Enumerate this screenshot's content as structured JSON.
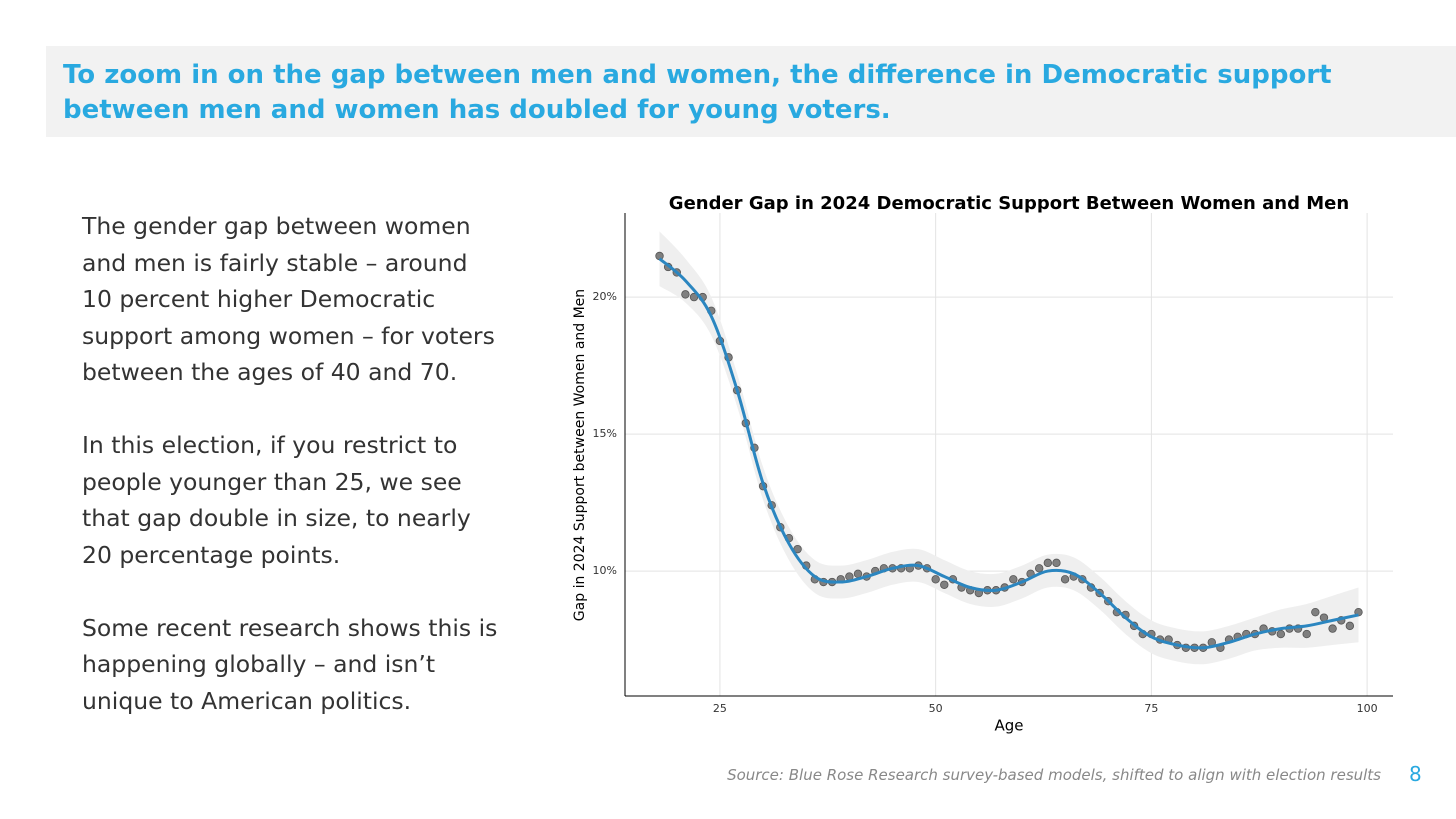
{
  "header": {
    "title": "To zoom in on the gap between men and women, the difference in Democratic support between men and women has doubled for young voters."
  },
  "body": {
    "paragraphs": [
      "The gender gap between women and men is fairly stable – around 10 percent higher Democratic support among women – for voters between the ages of 40 and 70.",
      "In this election, if you restrict to people younger than 25, we see that gap double in size, to nearly 20 percentage points.",
      "Some recent research shows this is happening globally – and isn’t unique to American politics."
    ]
  },
  "chart_data": {
    "type": "scatter",
    "title": "Gender Gap in 2024 Democratic Support Between Women and Men",
    "x_label": "Age",
    "y_label": "Gap in 2024 Support between Women and Men",
    "xlim": [
      14,
      103
    ],
    "ylim": [
      5.44,
      23.07
    ],
    "xticks": [
      25,
      50,
      75,
      100
    ],
    "yticks": [
      {
        "value": 10,
        "label": "10%"
      },
      {
        "value": 15,
        "label": "15%"
      },
      {
        "value": 20,
        "label": "20%"
      }
    ],
    "grid": true,
    "points": {
      "color": "#7f7f7f",
      "x": [
        18,
        19,
        20,
        21,
        22,
        23,
        24,
        25,
        26,
        27,
        28,
        29,
        30,
        31,
        32,
        33,
        34,
        35,
        36,
        37,
        38,
        39,
        40,
        41,
        42,
        43,
        44,
        45,
        46,
        47,
        48,
        49,
        50,
        51,
        52,
        53,
        54,
        55,
        56,
        57,
        58,
        59,
        60,
        61,
        62,
        63,
        64,
        65,
        66,
        67,
        68,
        69,
        70,
        71,
        72,
        73,
        74,
        75,
        76,
        77,
        78,
        79,
        80,
        81,
        82,
        83,
        84,
        85,
        86,
        87,
        88,
        89,
        90,
        91,
        92,
        93,
        94,
        95,
        96,
        97,
        98,
        99
      ],
      "values": [
        21.5,
        21.1,
        20.9,
        20.1,
        20.0,
        20.0,
        19.5,
        18.4,
        17.8,
        16.6,
        15.4,
        14.5,
        13.1,
        12.4,
        11.6,
        11.2,
        10.8,
        10.2,
        9.7,
        9.6,
        9.6,
        9.7,
        9.8,
        9.9,
        9.8,
        10.0,
        10.1,
        10.1,
        10.1,
        10.1,
        10.2,
        10.1,
        9.7,
        9.5,
        9.7,
        9.4,
        9.3,
        9.2,
        9.3,
        9.3,
        9.4,
        9.7,
        9.6,
        9.9,
        10.1,
        10.3,
        10.3,
        9.7,
        9.8,
        9.7,
        9.4,
        9.2,
        8.9,
        8.5,
        8.4,
        8.0,
        7.7,
        7.7,
        7.5,
        7.5,
        7.3,
        7.2,
        7.2,
        7.2,
        7.4,
        7.2,
        7.5,
        7.6,
        7.7,
        7.7,
        7.9,
        7.8,
        7.7,
        7.9,
        7.9,
        7.7,
        8.5,
        8.3,
        7.9,
        8.2,
        8.0,
        8.5
      ]
    },
    "fit": {
      "color": "#2b86c0",
      "x": [
        18,
        21,
        24,
        27,
        30,
        33,
        36,
        39,
        42,
        45,
        48,
        51,
        54,
        57,
        60,
        63,
        66,
        69,
        72,
        75,
        78,
        81,
        84,
        87,
        90,
        93,
        96,
        99
      ],
      "values": [
        21.4,
        20.6,
        19.3,
        16.6,
        13.2,
        11.0,
        9.8,
        9.6,
        9.8,
        10.1,
        10.2,
        9.8,
        9.4,
        9.3,
        9.6,
        10.0,
        9.9,
        9.2,
        8.3,
        7.6,
        7.3,
        7.2,
        7.4,
        7.7,
        7.9,
        8.0,
        8.2,
        8.4
      ]
    },
    "band": {
      "color": "#efefef",
      "x": [
        18,
        21,
        24,
        27,
        30,
        33,
        36,
        39,
        42,
        45,
        48,
        51,
        54,
        57,
        60,
        63,
        66,
        69,
        72,
        75,
        78,
        81,
        84,
        87,
        90,
        93,
        96,
        99
      ],
      "lower": [
        20.4,
        19.8,
        18.6,
        16.0,
        12.6,
        10.4,
        9.2,
        9.0,
        9.2,
        9.5,
        9.6,
        9.2,
        8.8,
        8.7,
        9.0,
        9.4,
        9.3,
        8.6,
        7.7,
        7.0,
        6.7,
        6.6,
        6.8,
        7.1,
        7.2,
        7.2,
        7.3,
        7.4
      ],
      "upper": [
        22.4,
        21.4,
        20.0,
        17.2,
        13.8,
        11.6,
        10.4,
        10.2,
        10.4,
        10.7,
        10.8,
        10.4,
        10.0,
        9.9,
        10.2,
        10.6,
        10.5,
        9.8,
        8.9,
        8.2,
        7.9,
        7.8,
        8.0,
        8.3,
        8.6,
        8.8,
        9.1,
        9.4
      ]
    }
  },
  "footer": {
    "source": "Source: Blue Rose Research survey-based models, shifted to align with election results",
    "page": 8
  }
}
